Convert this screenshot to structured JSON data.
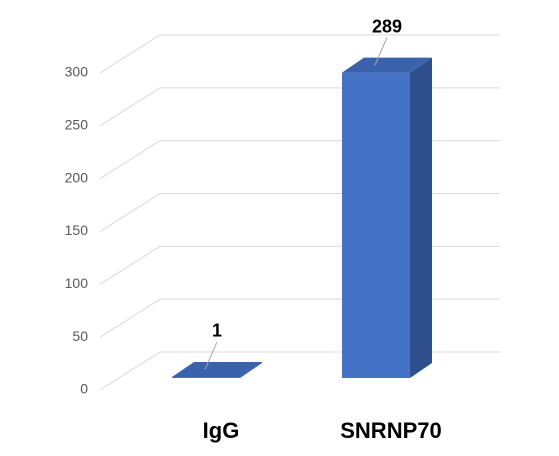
{
  "chart_data": {
    "type": "bar3d",
    "categories": [
      "IgG",
      "SNRNP70"
    ],
    "values": [
      1,
      289
    ],
    "colors": {
      "front": "#4472c4",
      "top": "#3a62ad",
      "side": "#2f4f8c"
    },
    "ylim": [
      0,
      300
    ],
    "yticks": [
      0,
      50,
      100,
      150,
      200,
      250,
      300
    ],
    "grid": true
  }
}
